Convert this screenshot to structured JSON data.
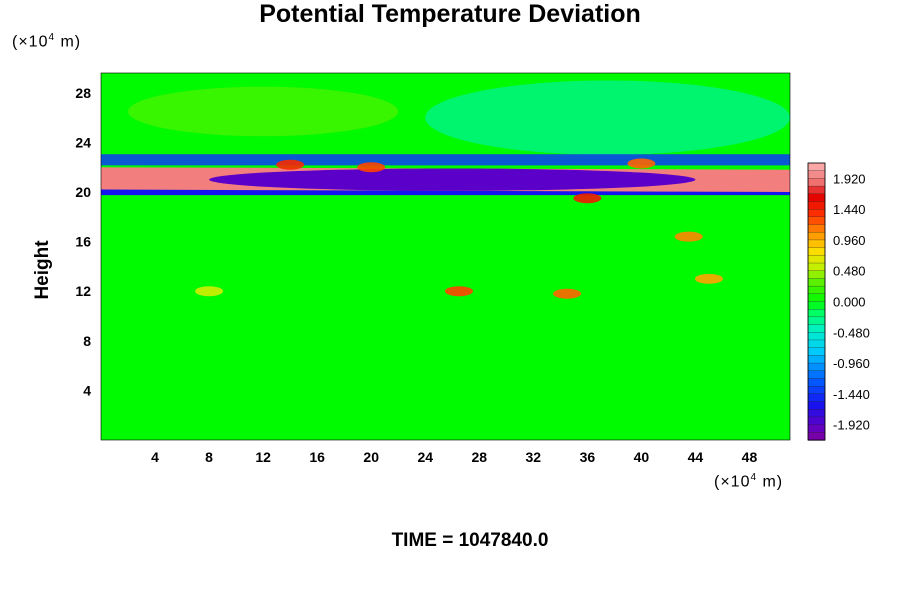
{
  "chart_data": {
    "type": "heatmap",
    "title": "Potential Temperature Deviation",
    "ylabel": "Height",
    "xlabel": "",
    "x_unit_prefix": "(×10",
    "x_unit_exp": "4",
    "x_unit_suffix": " m)",
    "y_unit_prefix": "(×10",
    "y_unit_exp": "4",
    "y_unit_suffix": " m)",
    "xlim": [
      0,
      51
    ],
    "ylim": [
      0,
      29.6
    ],
    "x_ticks": [
      4,
      8,
      12,
      16,
      20,
      24,
      28,
      32,
      36,
      40,
      44,
      48
    ],
    "y_ticks": [
      4,
      8,
      12,
      16,
      20,
      24,
      28
    ],
    "colorbar": {
      "min": -2.16,
      "max": 2.16,
      "labels": [
        "1.920",
        "1.440",
        "0.960",
        "0.480",
        "0.000",
        "-0.480",
        "-0.960",
        "-1.440",
        "-1.920"
      ],
      "label_values": [
        1.92,
        1.44,
        0.96,
        0.48,
        0.0,
        -0.48,
        -0.96,
        -1.44,
        -1.92
      ]
    },
    "features": {
      "background_value": 0.0,
      "cool_layer_upper": {
        "x_start": 0,
        "x_end": 51,
        "y_center": 22.6,
        "value": -1.4
      },
      "hot_band": {
        "x_start": 0,
        "x_end": 51,
        "y_center_left": 21.1,
        "y_center_right": 20.9,
        "value": 1.92
      },
      "cold_core": {
        "x_start": 8,
        "x_end": 44,
        "y_center": 21.0,
        "value": -1.92
      },
      "lower_dark_line": {
        "x_start": 0,
        "x_end": 51,
        "y_center": 20.0,
        "value": -1.6
      },
      "red_patches": [
        {
          "x": 14,
          "y": 22.2,
          "value": 1.4
        },
        {
          "x": 20,
          "y": 22.0,
          "value": 1.3
        },
        {
          "x": 36,
          "y": 19.5,
          "value": 1.5
        },
        {
          "x": 40,
          "y": 22.3,
          "value": 1.2
        },
        {
          "x": 26.5,
          "y": 12.0,
          "value": 1.3
        },
        {
          "x": 34.5,
          "y": 11.8,
          "value": 1.2
        },
        {
          "x": 43.5,
          "y": 16.4,
          "value": 1.1
        },
        {
          "x": 45,
          "y": 13.0,
          "value": 1.0
        },
        {
          "x": 8,
          "y": 12.0,
          "value": 0.6
        }
      ],
      "cyan_region": {
        "x_start": 24,
        "x_end": 51,
        "y_start": 23,
        "y_end": 29,
        "value": -0.45
      }
    }
  },
  "time_label": "TIME = 1047840.0"
}
